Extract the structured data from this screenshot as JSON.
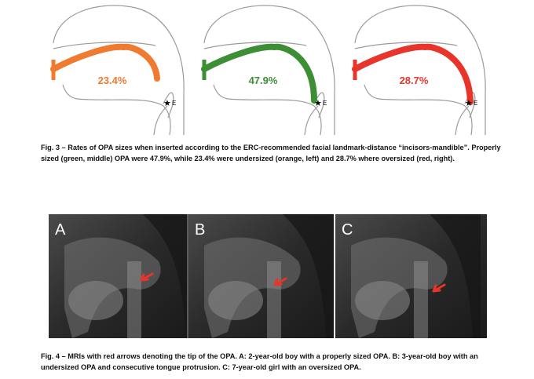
{
  "figure3": {
    "panels": [
      {
        "label": "23.4%",
        "landmark": "E"
      },
      {
        "label": "47.9%",
        "landmark": "E"
      },
      {
        "label": "28.7%",
        "landmark": "E"
      }
    ],
    "caption": "Fig. 3 – Rates of OPA sizes when inserted according to the ERC-recommended facial landmark-distance “incisors-mandible”. Properly sized (green, middle) OPA were 47.9%, while 23.4% were undersized (orange, left) and 28.7% where oversized (red, right)."
  },
  "figure4": {
    "panels": [
      {
        "label": "A"
      },
      {
        "label": "B"
      },
      {
        "label": "C"
      }
    ],
    "caption": "Fig. 4 – MRIs with red arrows denoting the tip of the OPA. A: 2-year-old boy with a properly sized OPA. B: 3-year-old boy with an undersized OPA and consecutive tongue protrusion. C: 7-year-old girl with an oversized OPA."
  }
}
